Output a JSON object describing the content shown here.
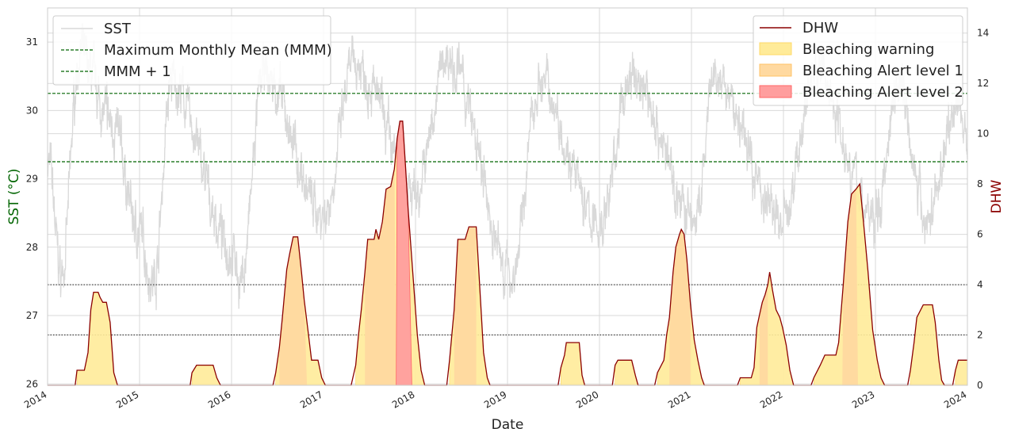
{
  "chart_data": {
    "type": "line",
    "xlabel": "Date",
    "ylabel_left": "SST (°C)",
    "ylabel_right": "DHW",
    "x_range": [
      2014,
      2024
    ],
    "x_ticks": [
      "2014",
      "2015",
      "2016",
      "2017",
      "2018",
      "2019",
      "2020",
      "2021",
      "2022",
      "2023",
      "2024"
    ],
    "y_left_range": [
      25.98,
      31.5
    ],
    "y_left_ticks": [
      "26",
      "27",
      "28",
      "29",
      "30",
      "31"
    ],
    "y_right_range": [
      0,
      15
    ],
    "y_right_ticks": [
      "0",
      "2",
      "4",
      "6",
      "8",
      "10",
      "12",
      "14"
    ],
    "grid": true,
    "reference_lines": {
      "mmm": 29.25,
      "mmm_plus_1": 30.25,
      "dhw_thresholds": [
        2,
        4
      ]
    },
    "legend_left": [
      "SST",
      "Maximum Monthly Mean (MMM)",
      "MMM + 1"
    ],
    "legend_right": [
      "DHW",
      "Bleaching warning",
      "Bleaching Alert level 1",
      "Bleaching Alert level 2"
    ],
    "colors": {
      "sst": "#d9d9d9",
      "mmm": "#006400",
      "dhw": "#8b0000",
      "warning": "#ffeb99",
      "alert1": "#ffd9a0",
      "alert2": "#ff9e9e",
      "ylabel_left": "#006400",
      "ylabel_right": "#8b0000"
    },
    "dhw_series": [
      [
        2014.0,
        0
      ],
      [
        2014.3,
        0
      ],
      [
        2014.32,
        0.6
      ],
      [
        2014.4,
        0.6
      ],
      [
        2014.44,
        1.3
      ],
      [
        2014.47,
        3.0
      ],
      [
        2014.5,
        3.7
      ],
      [
        2014.55,
        3.7
      ],
      [
        2014.57,
        3.5
      ],
      [
        2014.6,
        3.3
      ],
      [
        2014.64,
        3.3
      ],
      [
        2014.68,
        2.5
      ],
      [
        2014.72,
        0.5
      ],
      [
        2014.76,
        0
      ],
      [
        2015.55,
        0
      ],
      [
        2015.57,
        0.5
      ],
      [
        2015.62,
        0.8
      ],
      [
        2015.8,
        0.8
      ],
      [
        2015.84,
        0.3
      ],
      [
        2015.88,
        0
      ],
      [
        2016.45,
        0
      ],
      [
        2016.48,
        0.5
      ],
      [
        2016.52,
        1.5
      ],
      [
        2016.55,
        2.6
      ],
      [
        2016.6,
        4.6
      ],
      [
        2016.63,
        5.2
      ],
      [
        2016.67,
        5.9
      ],
      [
        2016.72,
        5.9
      ],
      [
        2016.76,
        4.5
      ],
      [
        2016.79,
        3.4
      ],
      [
        2016.83,
        2.2
      ],
      [
        2016.87,
        1.0
      ],
      [
        2016.94,
        1.0
      ],
      [
        2016.98,
        0.3
      ],
      [
        2017.02,
        0
      ],
      [
        2017.3,
        0
      ],
      [
        2017.35,
        0.8
      ],
      [
        2017.38,
        2.0
      ],
      [
        2017.41,
        3.0
      ],
      [
        2017.45,
        4.5
      ],
      [
        2017.48,
        5.8
      ],
      [
        2017.55,
        5.8
      ],
      [
        2017.57,
        6.2
      ],
      [
        2017.6,
        5.8
      ],
      [
        2017.64,
        6.5
      ],
      [
        2017.68,
        7.8
      ],
      [
        2017.73,
        7.9
      ],
      [
        2017.77,
        8.6
      ],
      [
        2017.8,
        9.8
      ],
      [
        2017.83,
        10.5
      ],
      [
        2017.86,
        10.5
      ],
      [
        2017.89,
        8.8
      ],
      [
        2017.92,
        7.0
      ],
      [
        2017.97,
        4.5
      ],
      [
        2018.02,
        2.0
      ],
      [
        2018.06,
        0.6
      ],
      [
        2018.1,
        0
      ],
      [
        2018.34,
        0
      ],
      [
        2018.37,
        1.0
      ],
      [
        2018.42,
        3.0
      ],
      [
        2018.46,
        5.8
      ],
      [
        2018.54,
        5.8
      ],
      [
        2018.58,
        6.3
      ],
      [
        2018.66,
        6.3
      ],
      [
        2018.7,
        3.8
      ],
      [
        2018.74,
        1.3
      ],
      [
        2018.78,
        0.3
      ],
      [
        2018.81,
        0
      ],
      [
        2019.55,
        0
      ],
      [
        2019.58,
        0.7
      ],
      [
        2019.62,
        1.2
      ],
      [
        2019.64,
        1.7
      ],
      [
        2019.78,
        1.7
      ],
      [
        2019.81,
        0.4
      ],
      [
        2019.84,
        0
      ],
      [
        2020.14,
        0
      ],
      [
        2020.17,
        0.8
      ],
      [
        2020.2,
        1.0
      ],
      [
        2020.35,
        1.0
      ],
      [
        2020.39,
        0.4
      ],
      [
        2020.42,
        0
      ],
      [
        2020.6,
        0
      ],
      [
        2020.63,
        0.5
      ],
      [
        2020.7,
        1.0
      ],
      [
        2020.73,
        2.0
      ],
      [
        2020.76,
        2.7
      ],
      [
        2020.8,
        4.5
      ],
      [
        2020.83,
        5.5
      ],
      [
        2020.87,
        6.0
      ],
      [
        2020.89,
        6.2
      ],
      [
        2020.92,
        6.0
      ],
      [
        2020.95,
        5.0
      ],
      [
        2020.99,
        3.2
      ],
      [
        2021.03,
        1.8
      ],
      [
        2021.07,
        1.0
      ],
      [
        2021.11,
        0.3
      ],
      [
        2021.14,
        0
      ],
      [
        2021.5,
        0
      ],
      [
        2021.53,
        0.3
      ],
      [
        2021.65,
        0.3
      ],
      [
        2021.68,
        0.7
      ],
      [
        2021.71,
        2.3
      ],
      [
        2021.74,
        2.8
      ],
      [
        2021.77,
        3.3
      ],
      [
        2021.8,
        3.6
      ],
      [
        2021.83,
        4.0
      ],
      [
        2021.85,
        4.5
      ],
      [
        2021.88,
        3.8
      ],
      [
        2021.92,
        3.0
      ],
      [
        2021.96,
        2.7
      ],
      [
        2021.99,
        2.3
      ],
      [
        2022.03,
        1.6
      ],
      [
        2022.07,
        0.6
      ],
      [
        2022.11,
        0
      ],
      [
        2022.3,
        0
      ],
      [
        2022.33,
        0.3
      ],
      [
        2022.4,
        0.8
      ],
      [
        2022.45,
        1.2
      ],
      [
        2022.57,
        1.2
      ],
      [
        2022.6,
        1.7
      ],
      [
        2022.65,
        4.0
      ],
      [
        2022.7,
        6.5
      ],
      [
        2022.74,
        7.6
      ],
      [
        2022.79,
        7.8
      ],
      [
        2022.83,
        8.0
      ],
      [
        2022.87,
        6.5
      ],
      [
        2022.92,
        4.5
      ],
      [
        2022.97,
        2.2
      ],
      [
        2023.02,
        1.0
      ],
      [
        2023.06,
        0.3
      ],
      [
        2023.1,
        0
      ],
      [
        2023.35,
        0
      ],
      [
        2023.38,
        0.6
      ],
      [
        2023.42,
        1.7
      ],
      [
        2023.45,
        2.7
      ],
      [
        2023.52,
        3.2
      ],
      [
        2023.62,
        3.2
      ],
      [
        2023.65,
        2.5
      ],
      [
        2023.69,
        1.0
      ],
      [
        2023.72,
        0.2
      ],
      [
        2023.75,
        0
      ],
      [
        2023.84,
        0
      ],
      [
        2023.87,
        0.6
      ],
      [
        2023.9,
        1.0
      ],
      [
        2024.0,
        1.0
      ]
    ],
    "sst_seasonal_fit": {
      "peaks": [
        [
          2014.0,
          29.3
        ],
        [
          2014.35,
          30.8
        ],
        [
          2014.7,
          29.8
        ],
        [
          2015.35,
          30.4
        ],
        [
          2016.35,
          30.5
        ],
        [
          2017.35,
          30.7
        ],
        [
          2018.35,
          30.8
        ],
        [
          2019.35,
          30.4
        ],
        [
          2020.35,
          30.5
        ],
        [
          2021.25,
          30.4
        ],
        [
          2022.35,
          30.6
        ],
        [
          2023.25,
          30.5
        ],
        [
          2023.9,
          30.1
        ],
        [
          2024.0,
          29.5
        ]
      ],
      "troughs": [
        [
          2014.15,
          27.6
        ],
        [
          2015.0,
          28.2
        ],
        [
          2015.15,
          27.5
        ],
        [
          2016.0,
          28.0
        ],
        [
          2016.1,
          27.5
        ],
        [
          2017.0,
          28.5
        ],
        [
          2018.0,
          28.8
        ],
        [
          2019.05,
          27.6
        ],
        [
          2020.0,
          28.3
        ],
        [
          2021.05,
          28.4
        ],
        [
          2022.0,
          28.4
        ],
        [
          2023.0,
          28.4
        ],
        [
          2023.55,
          28.4
        ]
      ]
    }
  }
}
